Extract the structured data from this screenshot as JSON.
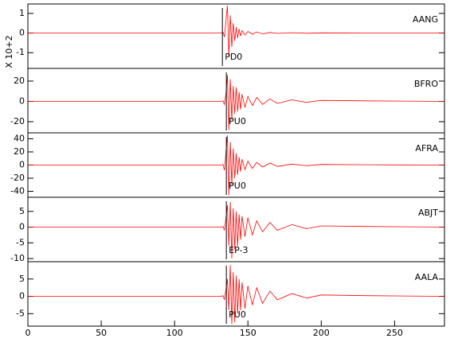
{
  "chart_data": [
    {
      "type": "line",
      "ylabel": "X 10+2",
      "phase": "PD0",
      "marker_x": 132.6,
      "xlim": [
        0,
        284
      ],
      "ylim": [
        -1.8,
        1.48
      ],
      "yticks": [
        -1,
        0,
        1
      ],
      "x": [
        0,
        60,
        120,
        132,
        133,
        134,
        135,
        136,
        137,
        138,
        139,
        140,
        141,
        142,
        143,
        144,
        145,
        146,
        148,
        150,
        153,
        156,
        160,
        165,
        170,
        180,
        190,
        200,
        230,
        284
      ],
      "series": [
        {
          "name": "AANG",
          "color": "#ff0000",
          "values": [
            0,
            0,
            0,
            0,
            0.05,
            -0.2,
            0.6,
            1.4,
            -1.2,
            0.9,
            -0.7,
            0.5,
            -0.4,
            0.3,
            -0.25,
            0.2,
            -0.15,
            0.12,
            -0.1,
            0.08,
            -0.06,
            0.05,
            -0.04,
            0.03,
            -0.02,
            0.02,
            -0.01,
            0.01,
            0,
            0
          ]
        }
      ]
    },
    {
      "type": "line",
      "phase": "PU0",
      "marker_x": 135.3,
      "xlim": [
        0,
        284
      ],
      "ylim": [
        -31,
        32.5
      ],
      "yticks": [
        -20,
        0,
        20
      ],
      "x": [
        0,
        60,
        120,
        132,
        133,
        134,
        135,
        136,
        137,
        138,
        139,
        140,
        141,
        142,
        143,
        144,
        145,
        146,
        148,
        150,
        153,
        156,
        160,
        165,
        170,
        180,
        190,
        200,
        230,
        284
      ],
      "series": [
        {
          "name": "BFRO",
          "color": "#ff0000",
          "values": [
            0,
            0,
            0,
            0,
            0.5,
            -3,
            8,
            26,
            -28,
            22,
            -18,
            15,
            -12,
            14,
            -10,
            9,
            -8,
            7,
            -6,
            5,
            -4,
            4,
            -3,
            2.5,
            -2,
            1.5,
            -1,
            1,
            0.5,
            0
          ]
        }
      ]
    },
    {
      "type": "line",
      "phase": "PU0",
      "marker_x": 135.3,
      "xlim": [
        0,
        284
      ],
      "ylim": [
        -49,
        49
      ],
      "yticks": [
        -40,
        -20,
        0,
        20,
        40
      ],
      "x": [
        0,
        60,
        120,
        132,
        133,
        134,
        135,
        136,
        137,
        138,
        139,
        140,
        141,
        142,
        143,
        144,
        145,
        146,
        148,
        150,
        153,
        156,
        160,
        165,
        170,
        180,
        190,
        200,
        230,
        284
      ],
      "series": [
        {
          "name": "AFRA",
          "color": "#ff0000",
          "values": [
            0,
            0,
            0,
            0,
            1,
            -8,
            20,
            45,
            -46,
            35,
            -30,
            25,
            -20,
            18,
            -15,
            12,
            -10,
            9,
            -7,
            6,
            -5,
            4,
            -3,
            3,
            -2,
            1.5,
            -1,
            1,
            0.5,
            0
          ]
        }
      ]
    },
    {
      "type": "line",
      "phase": "EP-3",
      "marker_x": 135.3,
      "xlim": [
        0,
        284
      ],
      "ylim": [
        -11,
        9.5
      ],
      "yticks": [
        -10,
        -5,
        0,
        5
      ],
      "x": [
        0,
        60,
        120,
        132,
        133,
        134,
        135,
        136,
        137,
        138,
        139,
        140,
        141,
        142,
        143,
        144,
        145,
        146,
        148,
        150,
        153,
        156,
        160,
        165,
        170,
        180,
        190,
        200,
        230,
        284
      ],
      "series": [
        {
          "name": "ABJT",
          "color": "#ff0000",
          "values": [
            0,
            0,
            0,
            0,
            0.2,
            -1,
            3,
            7,
            -6,
            8,
            -10,
            6,
            -7,
            5,
            -6,
            4,
            -4,
            3.5,
            -3,
            3,
            -2.5,
            2,
            -1.5,
            1.5,
            -1,
            0.8,
            -0.5,
            0.4,
            0.2,
            0
          ]
        }
      ]
    },
    {
      "type": "line",
      "phase": "PU0",
      "marker_x": 135.3,
      "xlim": [
        0,
        284
      ],
      "ylim": [
        -8.6,
        10
      ],
      "yticks": [
        -5,
        0,
        5
      ],
      "xticks": [
        0,
        50,
        100,
        150,
        200,
        250
      ],
      "x": [
        0,
        60,
        120,
        132,
        133,
        134,
        135,
        136,
        137,
        138,
        139,
        140,
        141,
        142,
        143,
        144,
        145,
        146,
        148,
        150,
        153,
        156,
        160,
        165,
        170,
        180,
        190,
        200,
        230,
        284
      ],
      "series": [
        {
          "name": "AALA",
          "color": "#ff0000",
          "values": [
            0,
            0,
            0,
            0,
            0.2,
            -1,
            2,
            5,
            -4,
            9,
            -8,
            7,
            -7.5,
            6,
            -5,
            5,
            -4,
            4,
            -3.5,
            3,
            -2.5,
            2.5,
            -2,
            1.5,
            -1,
            0.8,
            -0.5,
            0.4,
            0.2,
            0
          ]
        }
      ]
    }
  ]
}
